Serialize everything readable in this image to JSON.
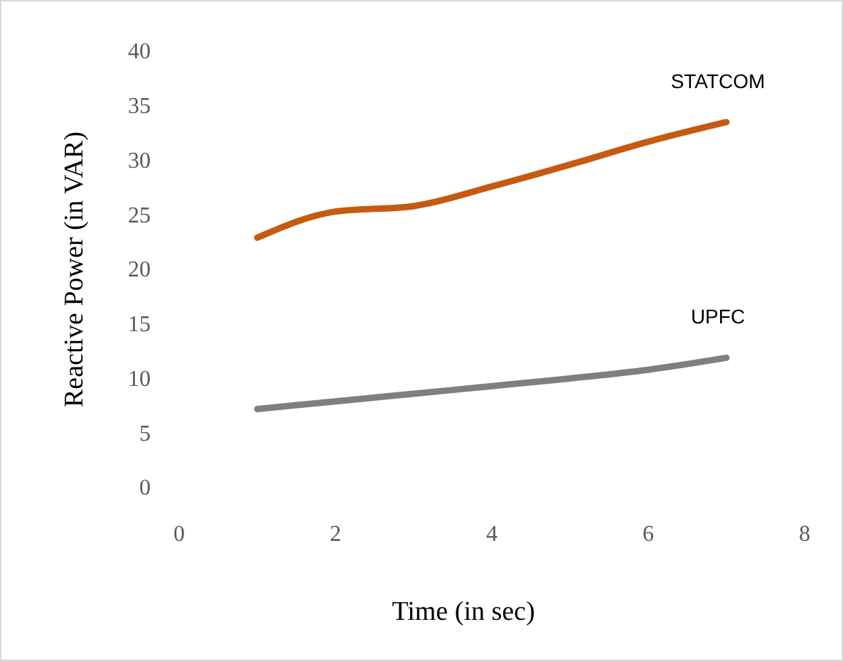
{
  "chart_data": {
    "type": "line",
    "xlabel": "Time (in sec)",
    "ylabel": "Reactive Power (in VAR)",
    "x": [
      1,
      2,
      3,
      4,
      5,
      6,
      7
    ],
    "series": [
      {
        "name": "STATCOM",
        "color": "#c55a11",
        "values": [
          22.9,
          25.3,
          25.8,
          27.6,
          29.6,
          31.7,
          33.5
        ]
      },
      {
        "name": "UPFC",
        "color": "#7f7f7f",
        "values": [
          7.2,
          7.9,
          8.6,
          9.3,
          10,
          10.8,
          11.9
        ]
      }
    ],
    "xlim": [
      0,
      8
    ],
    "xticks": [
      0,
      2,
      4,
      6,
      8
    ],
    "ylim": [
      0,
      40
    ],
    "yticks": [
      0,
      5,
      10,
      15,
      20,
      25,
      30,
      35,
      40
    ],
    "grid": false,
    "legend": false,
    "marker": "none",
    "line_style": "solid"
  }
}
